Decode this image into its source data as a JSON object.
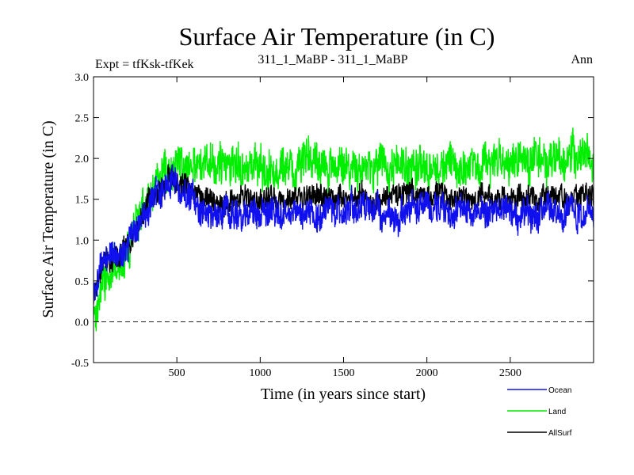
{
  "chart_data": {
    "type": "line",
    "title": "Surface Air Temperature (in C)",
    "subtitle_left": "Expt = tfKsk-tfKek",
    "subtitle_center": "311_1_MaBP - 311_1_MaBP",
    "subtitle_right": "Ann",
    "xlabel": "Time (in years since start)",
    "ylabel": "Surface Air Temperature (in C)",
    "xlim": [
      0,
      3000
    ],
    "ylim": [
      -0.5,
      3.0
    ],
    "x_ticks": [
      500,
      1000,
      1500,
      2000,
      2500
    ],
    "x_tick_labels": [
      "500",
      "1000",
      "1500",
      "2000",
      "2500"
    ],
    "y_ticks": [
      -0.5,
      0.0,
      0.5,
      1.0,
      1.5,
      2.0,
      2.5,
      3.0
    ],
    "y_tick_labels": [
      "-0.5",
      "0.0",
      "0.5",
      "1.0",
      "1.5",
      "2.0",
      "2.5",
      "3.0"
    ],
    "zero_line": {
      "value": 0.0,
      "style": "dashed"
    },
    "legend_position": "bottom-right",
    "series": [
      {
        "name": "Land",
        "color": "#00ee00",
        "points": [
          [
            0,
            -0.05
          ],
          [
            50,
            0.45
          ],
          [
            100,
            0.55
          ],
          [
            150,
            0.7
          ],
          [
            200,
            0.9
          ],
          [
            250,
            1.1
          ],
          [
            300,
            1.35
          ],
          [
            350,
            1.55
          ],
          [
            400,
            1.75
          ],
          [
            450,
            1.9
          ],
          [
            500,
            1.95
          ],
          [
            550,
            1.98
          ],
          [
            600,
            1.95
          ],
          [
            700,
            1.9
          ],
          [
            800,
            1.85
          ],
          [
            900,
            1.9
          ],
          [
            1000,
            1.9
          ],
          [
            1200,
            1.88
          ],
          [
            1400,
            1.9
          ],
          [
            1600,
            1.9
          ],
          [
            1800,
            1.92
          ],
          [
            2000,
            1.92
          ],
          [
            2200,
            1.9
          ],
          [
            2400,
            1.95
          ],
          [
            2600,
            1.95
          ],
          [
            2800,
            1.98
          ],
          [
            3000,
            1.98
          ]
        ],
        "noise_amplitude": 0.22
      },
      {
        "name": "AllSurf",
        "color": "#000000",
        "points": [
          [
            0,
            0.3
          ],
          [
            50,
            0.7
          ],
          [
            100,
            0.75
          ],
          [
            150,
            0.8
          ],
          [
            200,
            0.95
          ],
          [
            250,
            1.15
          ],
          [
            300,
            1.35
          ],
          [
            350,
            1.5
          ],
          [
            400,
            1.62
          ],
          [
            450,
            1.72
          ],
          [
            500,
            1.72
          ],
          [
            550,
            1.65
          ],
          [
            600,
            1.55
          ],
          [
            700,
            1.5
          ],
          [
            800,
            1.48
          ],
          [
            900,
            1.5
          ],
          [
            1000,
            1.5
          ],
          [
            1200,
            1.5
          ],
          [
            1400,
            1.5
          ],
          [
            1600,
            1.52
          ],
          [
            1800,
            1.52
          ],
          [
            2000,
            1.55
          ],
          [
            2200,
            1.52
          ],
          [
            2400,
            1.52
          ],
          [
            2600,
            1.5
          ],
          [
            2800,
            1.52
          ],
          [
            3000,
            1.5
          ]
        ],
        "noise_amplitude": 0.13
      },
      {
        "name": "Ocean",
        "color": "#1010ee",
        "points": [
          [
            0,
            0.3
          ],
          [
            50,
            0.75
          ],
          [
            100,
            0.78
          ],
          [
            150,
            0.82
          ],
          [
            200,
            0.95
          ],
          [
            250,
            1.15
          ],
          [
            300,
            1.35
          ],
          [
            350,
            1.5
          ],
          [
            400,
            1.6
          ],
          [
            450,
            1.7
          ],
          [
            500,
            1.68
          ],
          [
            550,
            1.55
          ],
          [
            600,
            1.45
          ],
          [
            700,
            1.35
          ],
          [
            800,
            1.33
          ],
          [
            900,
            1.35
          ],
          [
            1000,
            1.35
          ],
          [
            1200,
            1.35
          ],
          [
            1400,
            1.36
          ],
          [
            1600,
            1.36
          ],
          [
            1800,
            1.38
          ],
          [
            2000,
            1.38
          ],
          [
            2200,
            1.36
          ],
          [
            2400,
            1.36
          ],
          [
            2600,
            1.35
          ],
          [
            2800,
            1.36
          ],
          [
            3000,
            1.35
          ]
        ],
        "noise_amplitude": 0.17
      }
    ],
    "legend": [
      {
        "name": "Ocean",
        "color": "#1010ee"
      },
      {
        "name": "Land",
        "color": "#00ee00"
      },
      {
        "name": "AllSurf",
        "color": "#000000"
      }
    ]
  }
}
